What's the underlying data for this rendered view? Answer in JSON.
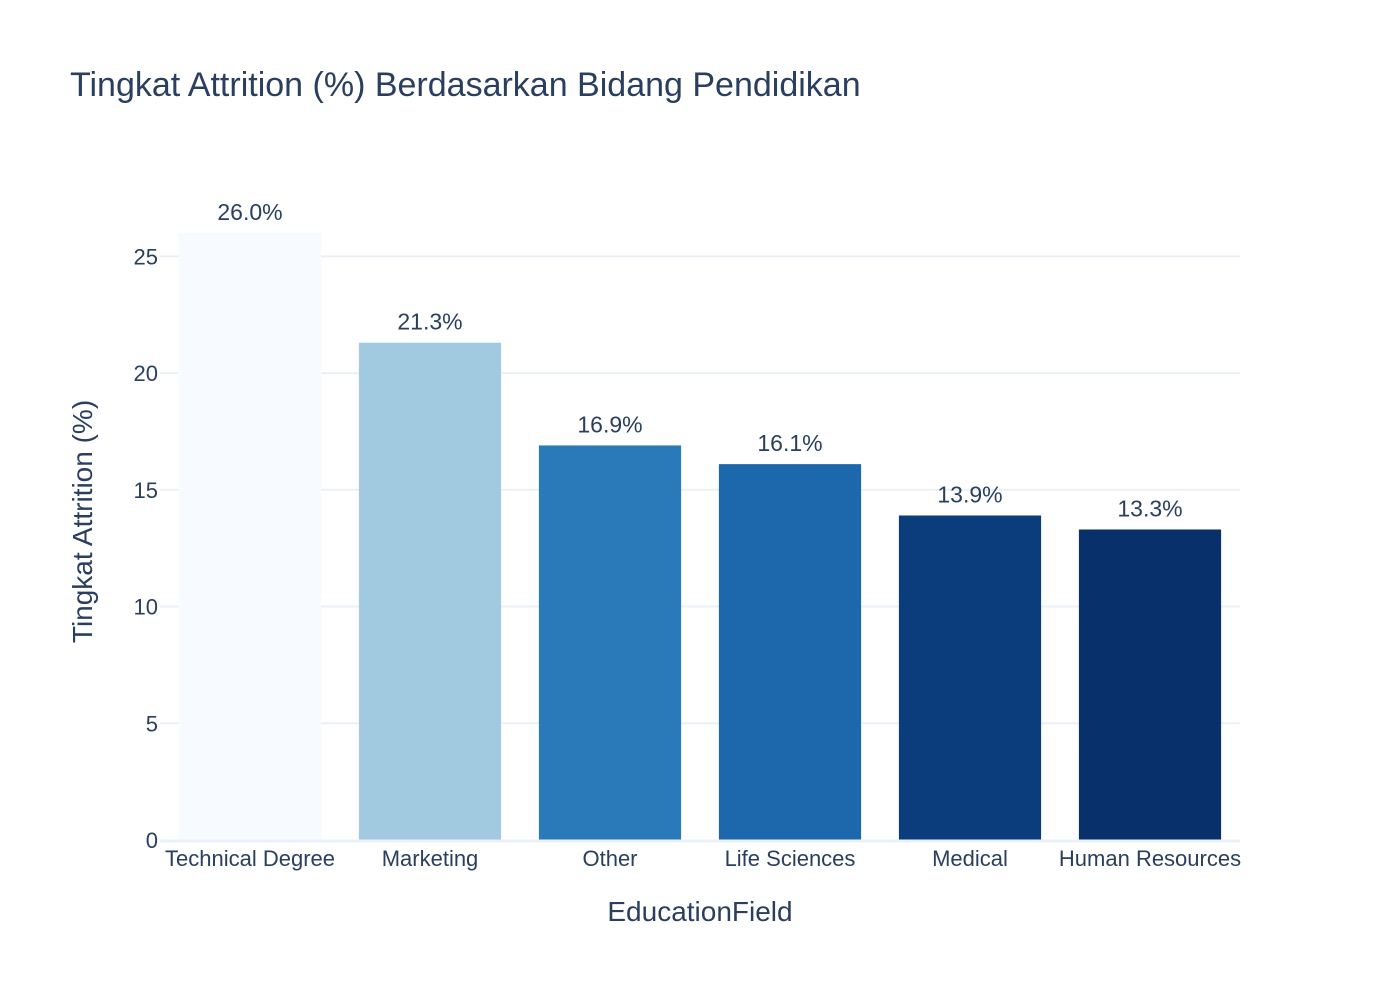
{
  "chart_data": {
    "type": "bar",
    "title": "Tingkat Attrition (%) Berdasarkan Bidang Pendidikan",
    "xlabel": "EducationField",
    "ylabel": "Tingkat Attrition (%)",
    "categories": [
      "Technical Degree",
      "Marketing",
      "Other",
      "Life Sciences",
      "Medical",
      "Human Resources"
    ],
    "values": [
      26.0,
      21.3,
      16.9,
      16.1,
      13.9,
      13.3
    ],
    "data_labels": [
      "26.0%",
      "21.3%",
      "16.9%",
      "16.1%",
      "13.9%",
      "13.3%"
    ],
    "bar_colors": [
      "#f7fbff",
      "#a1c9e0",
      "#2a79b8",
      "#1d67ad",
      "#0b3d7d",
      "#08306b"
    ],
    "ylim": [
      0,
      26
    ],
    "yticks": [
      0,
      5,
      10,
      15,
      20,
      25
    ],
    "grid": true,
    "legend": "none"
  }
}
